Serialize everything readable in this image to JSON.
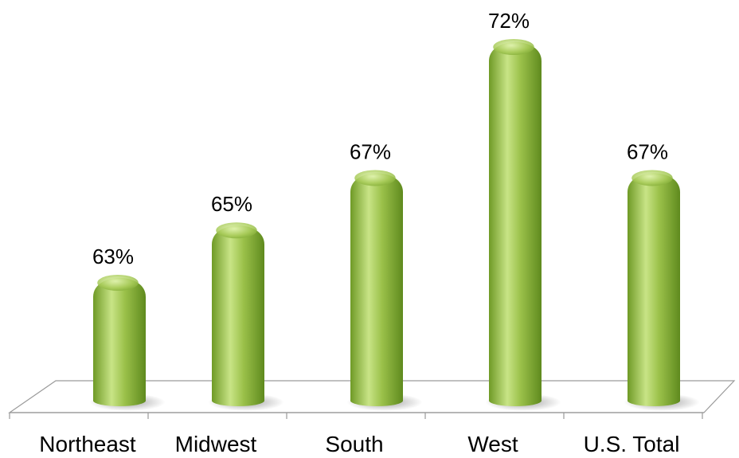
{
  "chart_data": {
    "type": "bar",
    "categories": [
      "Northeast",
      "Midwest",
      "South",
      "West",
      "U.S. Total"
    ],
    "values": [
      63,
      65,
      67,
      72,
      67
    ],
    "data_labels": [
      "63%",
      "65%",
      "67%",
      "72%",
      "67%"
    ],
    "title": "",
    "xlabel": "",
    "ylabel": "",
    "ylim": [
      58,
      72
    ],
    "grid": false,
    "legend": "none",
    "bar_style": "3d-cylinder",
    "colors": {
      "bar_main": "#9bc14a",
      "bar_light": "#d4ec9a",
      "bar_dark": "#5f8a1e",
      "floor_line": "#8c8c8c"
    }
  }
}
